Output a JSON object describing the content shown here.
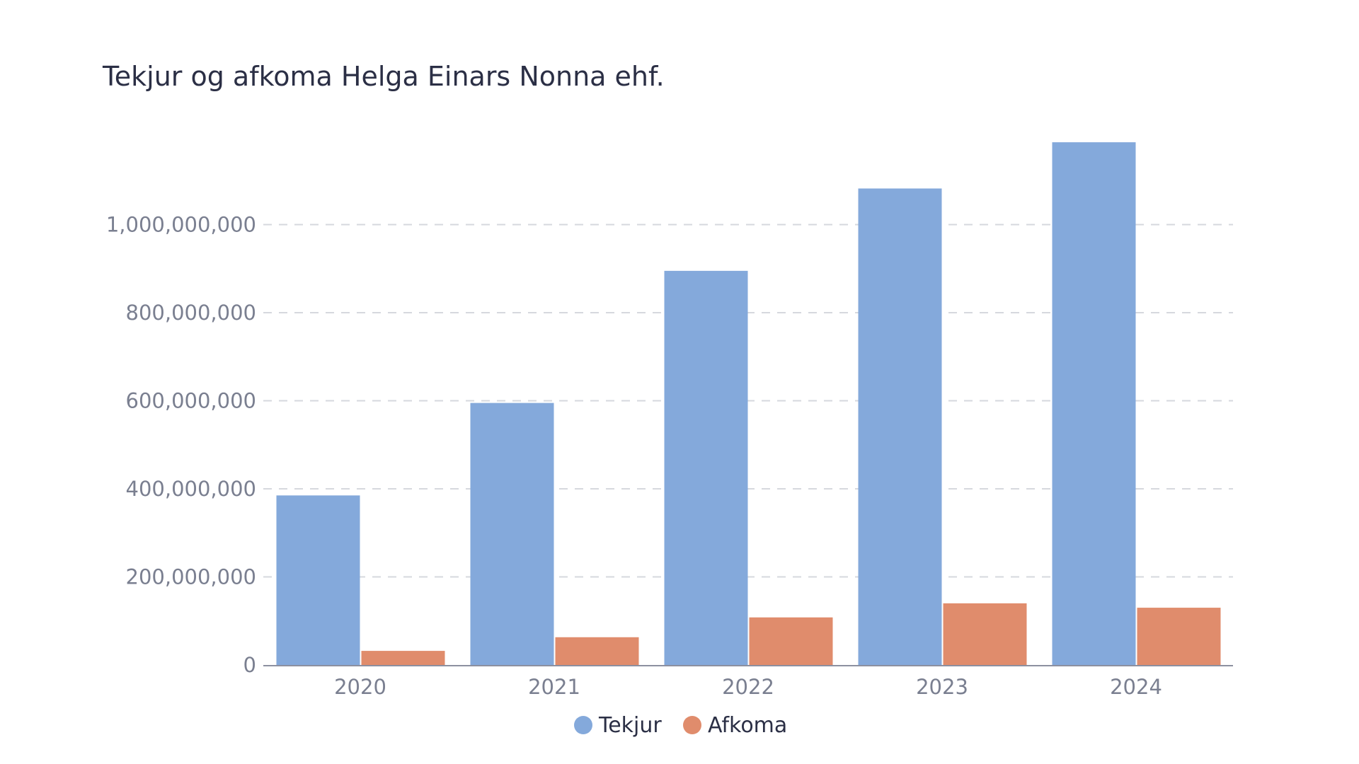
{
  "chart_data": {
    "type": "bar",
    "title": "Tekjur og afkoma Helga Einars Nonna ehf.",
    "xlabel": "",
    "ylabel": "",
    "categories": [
      "2020",
      "2021",
      "2022",
      "2023",
      "2024"
    ],
    "series": [
      {
        "name": "Tekjur",
        "color": "#84a9db",
        "values": [
          385000000,
          595000000,
          895000000,
          1082000000,
          1187000000
        ]
      },
      {
        "name": "Afkoma",
        "color": "#e08c6c",
        "values": [
          32000000,
          63000000,
          108000000,
          140000000,
          130000000
        ]
      }
    ],
    "ylim": [
      0,
      1200000000
    ],
    "yticks": [
      0,
      200000000,
      400000000,
      600000000,
      800000000,
      1000000000
    ],
    "ytick_labels": [
      "0",
      "200,000,000",
      "400,000,000",
      "600,000,000",
      "800,000,000",
      "1,000,000,000"
    ],
    "grid": true,
    "legend_position": "bottom"
  }
}
